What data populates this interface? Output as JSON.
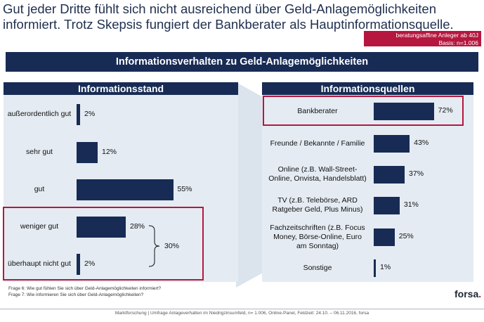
{
  "headline": {
    "line1": "Gut jeder Dritte fühlt sich nicht ausreichend über Geld-Anlagemöglichkeiten",
    "line2": "informiert. Trotz Skepsis fungiert der Bankberater als Hauptinformationsquelle."
  },
  "basis": {
    "line1": "beratungsaffine Anleger ab 40J",
    "line2": "Basis: n=1.006"
  },
  "main_title": "Informationsverhalten zu Geld-Anlagemöglichkeiten",
  "chart_data": [
    {
      "type": "bar",
      "orientation": "horizontal",
      "title": "Informationsstand",
      "categories": [
        "außerordentlich gut",
        "sehr gut",
        "gut",
        "weniger gut",
        "überhaupt nicht gut"
      ],
      "values": [
        2,
        12,
        55,
        28,
        2
      ],
      "labels": [
        "2%",
        "12%",
        "55%",
        "28%",
        "2%"
      ],
      "annotation": {
        "label": "30%",
        "groups": [
          "weniger gut",
          "überhaupt nicht gut"
        ]
      },
      "highlight": [
        "weniger gut",
        "überhaupt nicht gut"
      ],
      "color": "#172b54"
    },
    {
      "type": "bar",
      "orientation": "horizontal",
      "title": "Informationsquellen",
      "categories": [
        "Bankberater",
        "Freunde / Bekannte / Familie",
        "Online (z.B. Wall-Street-Online, Onvista, Handelsblatt)",
        "TV (z.B. Telebörse, ARD Ratgeber Geld, Plus Minus)",
        "Fachzeitschriften (z.B. Focus Money, Börse-Online, Euro am Sonntag)",
        "Sonstige"
      ],
      "category_lines": [
        [
          "Bankberater"
        ],
        [
          "Freunde / Bekannte / Familie"
        ],
        [
          "Online (z.B. Wall-Street-",
          "Online, Onvista, Handelsblatt)"
        ],
        [
          "TV (z.B. Telebörse, ARD",
          "Ratgeber Geld, Plus Minus)"
        ],
        [
          "Fachzeitschriften (z.B. Focus",
          "Money, Börse-Online, Euro",
          "am Sonntag)"
        ],
        [
          "Sonstige"
        ]
      ],
      "values": [
        72,
        43,
        37,
        31,
        25,
        1
      ],
      "labels": [
        "72%",
        "43%",
        "37%",
        "31%",
        "25%",
        "1%"
      ],
      "highlight": [
        "Bankberater"
      ],
      "color": "#172b54"
    }
  ],
  "footnotes": [
    "Frage 6: Wie gut fühlen Sie sich über Geld-Anlagemöglichkeiten informiert?",
    "Frage 7: Wie informieren Sie sich über Geld-Anlagemöglichkeiten?"
  ],
  "footer": "Marktforschung | Umfrage Anlageverhalten im Niedrigzinsumfeld, n= 1.006, Online-Panel, Feldzeit: 24.10. – 06.11.2016, forsa",
  "logo": {
    "text": "forsa",
    "dot": "."
  }
}
